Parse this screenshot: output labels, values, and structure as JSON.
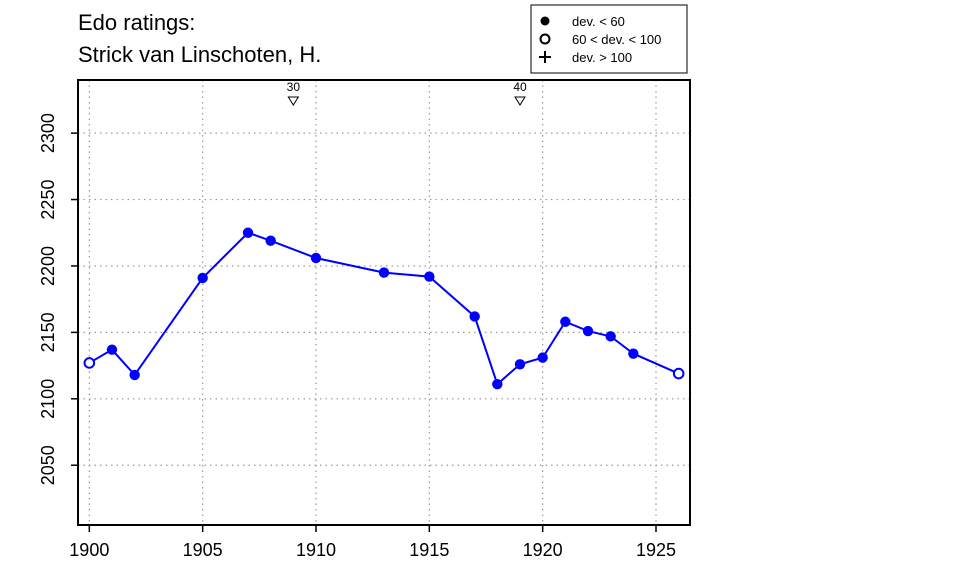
{
  "chart_data": {
    "type": "scatter",
    "title": [
      "Edo ratings:",
      "Strick van Linschoten, H."
    ],
    "xlabel": "",
    "ylabel": "",
    "xlim": [
      1899.5,
      1926.5
    ],
    "ylim": [
      2005,
      2340
    ],
    "x_ticks": [
      1900,
      1905,
      1910,
      1915,
      1920,
      1925
    ],
    "y_ticks": [
      2050,
      2100,
      2150,
      2200,
      2250,
      2300
    ],
    "grid": true,
    "line_color": "#0000ff",
    "points": [
      {
        "x": 1900,
        "y": 2127,
        "marker": "open"
      },
      {
        "x": 1901,
        "y": 2137,
        "marker": "filled"
      },
      {
        "x": 1902,
        "y": 2118,
        "marker": "filled"
      },
      {
        "x": 1905,
        "y": 2191,
        "marker": "filled"
      },
      {
        "x": 1907,
        "y": 2225,
        "marker": "filled"
      },
      {
        "x": 1908,
        "y": 2219,
        "marker": "filled"
      },
      {
        "x": 1910,
        "y": 2206,
        "marker": "filled"
      },
      {
        "x": 1913,
        "y": 2195,
        "marker": "filled"
      },
      {
        "x": 1915,
        "y": 2192,
        "marker": "filled"
      },
      {
        "x": 1917,
        "y": 2162,
        "marker": "filled"
      },
      {
        "x": 1918,
        "y": 2111,
        "marker": "filled"
      },
      {
        "x": 1919,
        "y": 2126,
        "marker": "filled"
      },
      {
        "x": 1920,
        "y": 2131,
        "marker": "filled"
      },
      {
        "x": 1921,
        "y": 2158,
        "marker": "filled"
      },
      {
        "x": 1922,
        "y": 2151,
        "marker": "filled"
      },
      {
        "x": 1923,
        "y": 2147,
        "marker": "filled"
      },
      {
        "x": 1924,
        "y": 2134,
        "marker": "filled"
      },
      {
        "x": 1926,
        "y": 2119,
        "marker": "open"
      }
    ],
    "age_markers": [
      {
        "x": 1909,
        "label": "30"
      },
      {
        "x": 1919,
        "label": "40"
      }
    ],
    "legend": {
      "position": "top-right",
      "entries": [
        {
          "symbol": "filled-circle",
          "label": "dev. < 60"
        },
        {
          "symbol": "open-circle",
          "label": "60 < dev. < 100"
        },
        {
          "symbol": "plus",
          "label": "dev. > 100"
        }
      ]
    }
  }
}
